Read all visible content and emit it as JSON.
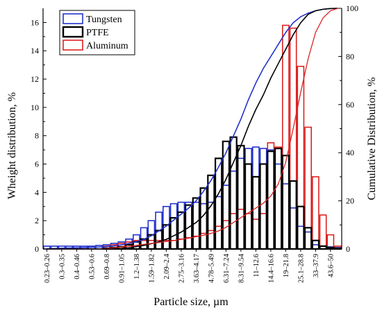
{
  "chart_data": {
    "type": "bar",
    "title": "",
    "xlabel": "Particle size, µm",
    "ylabel_left": "Wheight distribution, %",
    "ylabel_right": "Cumulative Distribution, %",
    "ylim_left": [
      0,
      17
    ],
    "ylim_right": [
      0,
      100
    ],
    "yticks_left": [
      0,
      2,
      4,
      6,
      8,
      10,
      12,
      14,
      16
    ],
    "yticks_right": [
      0,
      20,
      40,
      60,
      80,
      100
    ],
    "legend_position": "top-left",
    "grid": false,
    "bins": 40,
    "category_labels": [
      "0.23–0.26",
      "0.3–0.35",
      "0.4–0.46",
      "0.53–0.6",
      "0.69–0.8",
      "0.91–1.05",
      "1.2–1.38",
      "1.59–1.82",
      "2.09–2.4",
      "2.75–3.16",
      "3.63–4.17",
      "4.78–5.49",
      "6.31–7.24",
      "8.31–9.54",
      "11–12.6",
      "14.4–16.6",
      "19–21.8",
      "25.1–28.8",
      "33–37.9",
      "43.6–50"
    ],
    "series": [
      {
        "name": "Tungsten",
        "color": "#2233cc",
        "values": [
          0.2,
          0.2,
          0.2,
          0.2,
          0.2,
          0.2,
          0.2,
          0.25,
          0.3,
          0.4,
          0.5,
          0.7,
          1.0,
          1.5,
          2.0,
          2.6,
          3.0,
          3.2,
          3.3,
          3.3,
          3.3,
          3.2,
          3.3,
          3.7,
          4.5,
          5.5,
          6.4,
          7.1,
          7.2,
          7.1,
          7.0,
          6.0,
          4.6,
          2.9,
          1.6,
          1.2,
          0.3,
          0.2,
          0.15,
          0.1
        ],
        "cumulative": [
          0.1,
          0.2,
          0.3,
          0.4,
          0.5,
          0.6,
          0.7,
          0.8,
          1.0,
          1.3,
          1.7,
          2.3,
          3.0,
          4.0,
          5.5,
          7.5,
          9.5,
          12,
          14.5,
          17,
          20,
          24,
          28.5,
          34,
          40,
          47,
          54,
          62,
          69,
          75,
          80,
          85,
          90,
          94,
          96.5,
          98,
          99,
          99.6,
          99.9,
          100
        ]
      },
      {
        "name": "PTFE",
        "color": "#000000",
        "values": [
          0,
          0,
          0,
          0,
          0,
          0,
          0,
          0,
          0.05,
          0.1,
          0.15,
          0.3,
          0.5,
          0.7,
          1.0,
          1.3,
          1.7,
          2.2,
          2.6,
          3.1,
          3.6,
          4.3,
          5.2,
          6.4,
          7.6,
          7.9,
          7.3,
          6.0,
          5.1,
          6.0,
          6.9,
          7.1,
          6.6,
          4.8,
          3.0,
          1.5,
          0.6,
          0.2,
          0.1,
          0.05
        ],
        "cumulative": [
          0,
          0,
          0,
          0,
          0,
          0,
          0,
          0,
          0,
          0.1,
          0.2,
          0.5,
          1.0,
          1.5,
          2.2,
          3.0,
          4.0,
          5.5,
          7.0,
          9.0,
          11,
          14,
          18,
          23,
          29,
          36,
          43,
          51,
          58,
          64,
          71,
          77,
          83,
          89,
          94,
          97.5,
          99,
          99.6,
          99.9,
          100
        ]
      },
      {
        "name": "Aluminum",
        "color": "#dd2222",
        "values": [
          0,
          0,
          0,
          0,
          0,
          0,
          0,
          0,
          0.2,
          0.3,
          0.4,
          0.5,
          0.6,
          0.6,
          0.6,
          0.6,
          0.6,
          0.6,
          0.7,
          0.8,
          0.9,
          1.1,
          1.3,
          1.6,
          2.0,
          2.5,
          2.8,
          2.5,
          2.1,
          2.5,
          7.5,
          7.2,
          15.8,
          15.6,
          12.9,
          8.6,
          5.1,
          2.4,
          1.0,
          0.2
        ],
        "cumulative": [
          0,
          0,
          0,
          0,
          0,
          0,
          0,
          0,
          0.2,
          0.5,
          0.8,
          1.1,
          1.5,
          1.9,
          2.3,
          2.7,
          3.1,
          3.5,
          4.0,
          4.5,
          5.1,
          5.7,
          6.5,
          7.5,
          9.0,
          11,
          13,
          15,
          17,
          19,
          22,
          27,
          36,
          50,
          65,
          79,
          90,
          96,
          99,
          100
        ]
      }
    ]
  }
}
